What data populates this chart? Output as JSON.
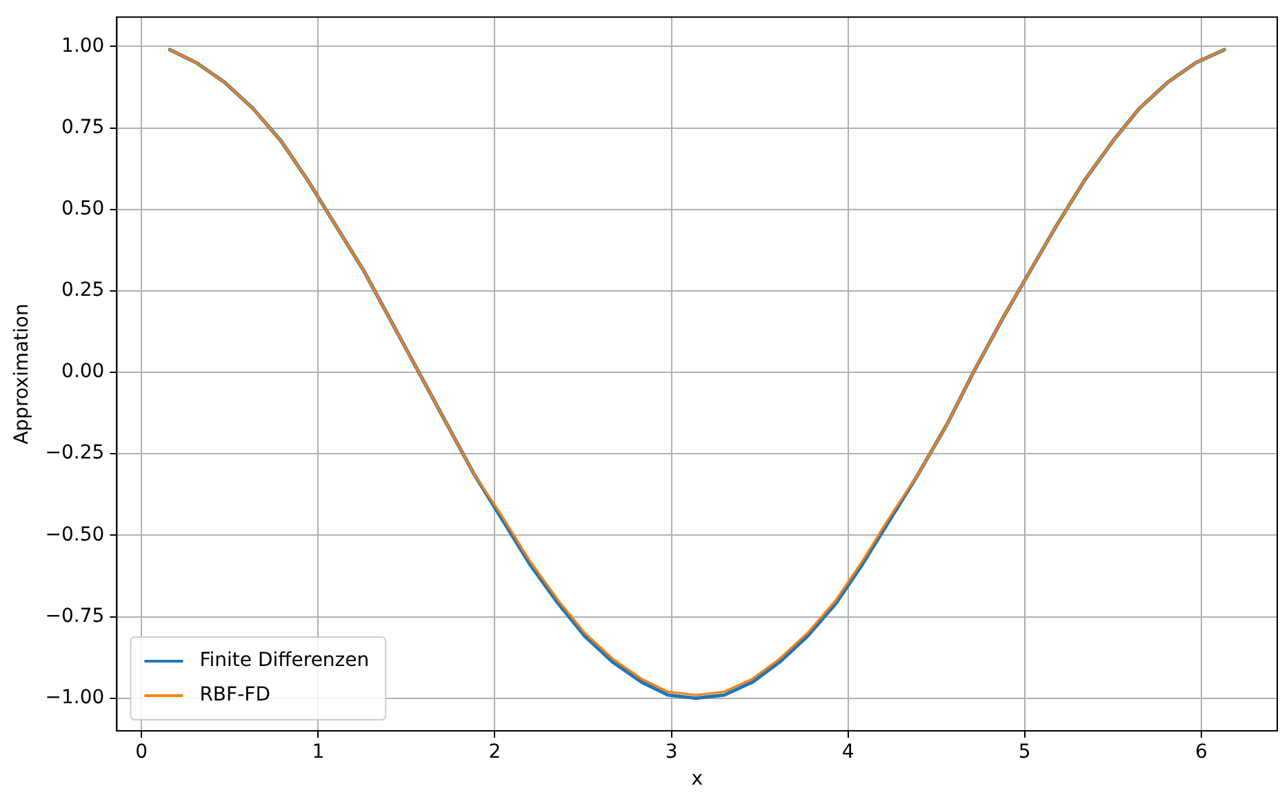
{
  "chart_data": {
    "type": "line",
    "xlabel": "x",
    "ylabel": "Approximation",
    "x": [
      0.16,
      0.31,
      0.47,
      0.63,
      0.79,
      0.94,
      1.1,
      1.26,
      1.41,
      1.57,
      1.73,
      1.88,
      2.04,
      2.2,
      2.36,
      2.51,
      2.67,
      2.83,
      2.98,
      3.14,
      3.3,
      3.46,
      3.61,
      3.77,
      3.93,
      4.08,
      4.24,
      4.4,
      4.56,
      4.71,
      4.87,
      5.03,
      5.18,
      5.34,
      5.5,
      5.65,
      5.81,
      5.97,
      6.13
    ],
    "series": [
      {
        "name": "Finite Differenzen",
        "color": "#1f77b4",
        "values": [
          0.99,
          0.95,
          0.89,
          0.81,
          0.71,
          0.59,
          0.45,
          0.31,
          0.16,
          0.0,
          -0.16,
          -0.31,
          -0.45,
          -0.59,
          -0.71,
          -0.81,
          -0.89,
          -0.95,
          -0.99,
          -1.0,
          -0.99,
          -0.95,
          -0.89,
          -0.81,
          -0.71,
          -0.59,
          -0.45,
          -0.31,
          -0.16,
          0.0,
          0.16,
          0.31,
          0.45,
          0.59,
          0.71,
          0.81,
          0.89,
          0.95,
          0.99
        ]
      },
      {
        "name": "RBF-FD",
        "color": "#ff7f0e",
        "values": [
          0.99,
          0.95,
          0.89,
          0.81,
          0.71,
          0.59,
          0.45,
          0.31,
          0.16,
          0.0,
          -0.16,
          -0.31,
          -0.44,
          -0.58,
          -0.7,
          -0.8,
          -0.88,
          -0.94,
          -0.98,
          -0.99,
          -0.98,
          -0.94,
          -0.88,
          -0.8,
          -0.7,
          -0.58,
          -0.44,
          -0.31,
          -0.16,
          0.0,
          0.16,
          0.31,
          0.45,
          0.59,
          0.71,
          0.81,
          0.89,
          0.95,
          0.99
        ]
      }
    ],
    "xlim": [
      -0.14,
      6.43
    ],
    "xticks": [
      0,
      1,
      2,
      3,
      4,
      5,
      6
    ],
    "ylim": [
      -1.1,
      1.09
    ],
    "yticks": [
      {
        "value": -1,
        "label": "−1.00"
      },
      {
        "value": -0.75,
        "label": "−0.75"
      },
      {
        "value": -0.5,
        "label": "−0.50"
      },
      {
        "value": -0.25,
        "label": "−0.25"
      },
      {
        "value": 0,
        "label": "0.00"
      },
      {
        "value": 0.25,
        "label": "0.25"
      },
      {
        "value": 0.5,
        "label": "0.50"
      },
      {
        "value": 0.75,
        "label": "0.75"
      },
      {
        "value": 1,
        "label": "1.00"
      }
    ],
    "grid": true,
    "legend": "bottom left",
    "line_style": "solid",
    "marker": "none"
  }
}
